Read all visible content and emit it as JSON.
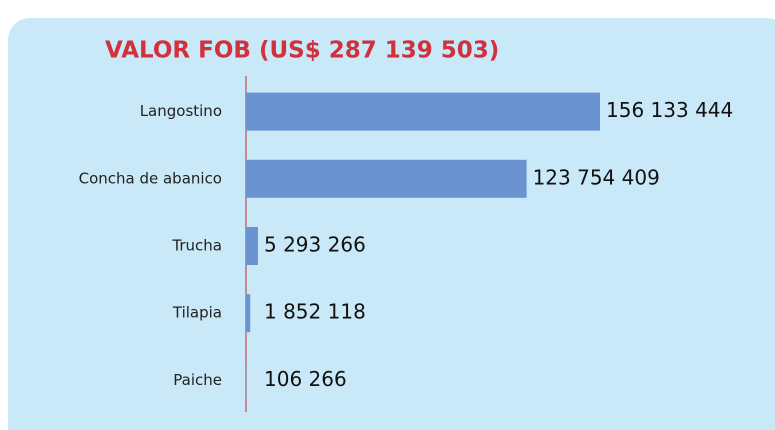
{
  "chart_data": {
    "type": "bar",
    "orientation": "horizontal",
    "title": "VALOR FOB (US$ 287 139 503)",
    "categories": [
      "Langostino",
      "Concha de abanico",
      "Trucha",
      "Tilapia",
      "Paiche"
    ],
    "values": [
      156133444,
      123754409,
      5293266,
      1852118,
      106266
    ],
    "value_labels": [
      "156 133 444",
      "123 754 409",
      "5 293 266",
      "1 852 118",
      "106 266"
    ],
    "color": "#6a93cf"
  }
}
